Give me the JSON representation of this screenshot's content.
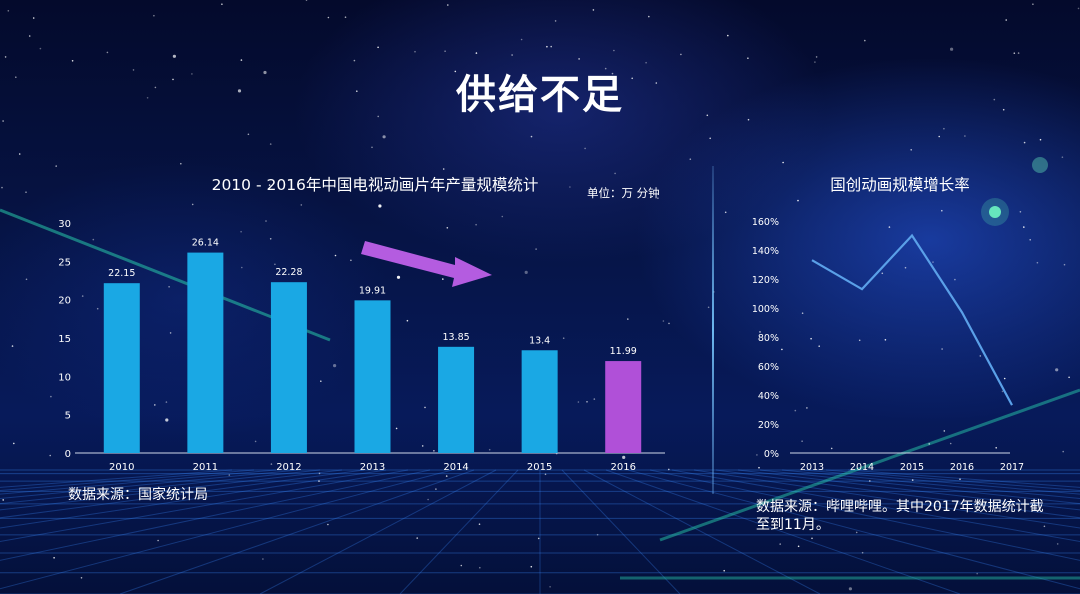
{
  "title": "供给不足",
  "colors": {
    "bar": "#1aa8e4",
    "bar_highlight": "#b050d8",
    "line": "#5aa0e8",
    "arrow": "#b45ce0",
    "axis_text": "#ffffff"
  },
  "bar_chart": {
    "unit": "单位：万 分钟",
    "source": "数据来源：国家统计局"
  },
  "line_chart": {
    "source": "数据来源：哔哩哔哩。其中2017年数据统计截至到11月。"
  },
  "chart_data": [
    {
      "type": "bar",
      "title": "2010 - 2016年中国电视动画片年产量规模统计",
      "categories": [
        "2010",
        "2011",
        "2012",
        "2013",
        "2014",
        "2015",
        "2016"
      ],
      "values": [
        22.15,
        26.14,
        22.28,
        19.91,
        13.85,
        13.4,
        11.99
      ],
      "data_labels": [
        "22.15",
        "26.14",
        "22.28",
        "19.91",
        "13.85",
        "13.4",
        "11.99"
      ],
      "highlight_index": 6,
      "ylim": [
        0,
        30
      ],
      "yticks": [
        0,
        5,
        10,
        15,
        20,
        25,
        30
      ],
      "grid": false,
      "legend": "none"
    },
    {
      "type": "line",
      "title": "国创动画规模增长率",
      "categories": [
        "2013",
        "2014",
        "2015",
        "2016",
        "2017"
      ],
      "values": [
        1.33,
        1.13,
        1.5,
        0.97,
        0.33
      ],
      "ylim": [
        0,
        1.6
      ],
      "yticks": [
        "0%",
        "20%",
        "40%",
        "60%",
        "80%",
        "100%",
        "120%",
        "140%",
        "160%"
      ],
      "grid": false,
      "legend": "none"
    }
  ]
}
